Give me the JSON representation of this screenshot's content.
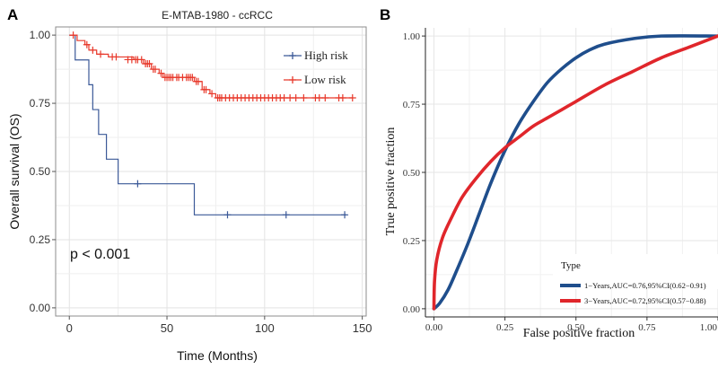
{
  "panels": {
    "a_label": "A",
    "b_label": "B"
  },
  "colors": {
    "high_risk": "#3b5998",
    "low_risk": "#e8392b",
    "roc_1yr": "#1f4e8c",
    "roc_3yr": "#e0262b",
    "grid": "#e3e3e3"
  },
  "chart_data": [
    {
      "type": "line",
      "title": "E-MTAB-1980 - ccRCC",
      "xlabel": "Time (Months)",
      "ylabel": "Overall survival (OS)",
      "xlim": [
        -7,
        152
      ],
      "ylim": [
        -0.03,
        1.03
      ],
      "x_ticks": [
        0,
        50,
        100,
        150
      ],
      "x_tick_labels": [
        "0",
        "50",
        "100",
        "150"
      ],
      "y_ticks": [
        0,
        0.25,
        0.5,
        0.75,
        1.0
      ],
      "y_tick_labels": [
        "0.00",
        "0.25",
        "0.50",
        "0.75",
        "1.00"
      ],
      "grid": true,
      "legend_position": "top-right",
      "annotation": "p < 0.001",
      "series": [
        {
          "name": "High risk",
          "color_key": "high_risk",
          "steps": [
            [
              0,
              1.0
            ],
            [
              3,
              0.909
            ],
            [
              10,
              0.818
            ],
            [
              12,
              0.727
            ],
            [
              15,
              0.636
            ],
            [
              19,
              0.545
            ],
            [
              25,
              0.455
            ],
            [
              64,
              0.341
            ],
            [
              142,
              0.341
            ]
          ],
          "censored": [
            [
              35,
              0.455
            ],
            [
              81,
              0.341
            ],
            [
              111,
              0.341
            ],
            [
              141,
              0.341
            ]
          ]
        },
        {
          "name": "Low risk",
          "color_key": "low_risk",
          "steps": [
            [
              0,
              1.0
            ],
            [
              4,
              0.98
            ],
            [
              8,
              0.965
            ],
            [
              10,
              0.945
            ],
            [
              14,
              0.93
            ],
            [
              20,
              0.92
            ],
            [
              33,
              0.91
            ],
            [
              38,
              0.895
            ],
            [
              42,
              0.875
            ],
            [
              46,
              0.86
            ],
            [
              48,
              0.845
            ],
            [
              64,
              0.83
            ],
            [
              68,
              0.8
            ],
            [
              72,
              0.785
            ],
            [
              75,
              0.77
            ],
            [
              145,
              0.77
            ]
          ],
          "censored": [
            [
              2,
              1.0
            ],
            [
              9,
              0.965
            ],
            [
              12,
              0.945
            ],
            [
              16,
              0.93
            ],
            [
              22,
              0.92
            ],
            [
              24,
              0.92
            ],
            [
              30,
              0.91
            ],
            [
              32,
              0.91
            ],
            [
              34,
              0.91
            ],
            [
              35,
              0.91
            ],
            [
              37,
              0.91
            ],
            [
              39,
              0.895
            ],
            [
              40,
              0.895
            ],
            [
              41,
              0.895
            ],
            [
              43,
              0.875
            ],
            [
              44,
              0.875
            ],
            [
              47,
              0.86
            ],
            [
              49,
              0.845
            ],
            [
              50,
              0.845
            ],
            [
              51,
              0.845
            ],
            [
              52,
              0.845
            ],
            [
              53,
              0.845
            ],
            [
              55,
              0.845
            ],
            [
              56,
              0.845
            ],
            [
              58,
              0.845
            ],
            [
              60,
              0.845
            ],
            [
              61,
              0.845
            ],
            [
              62,
              0.845
            ],
            [
              63,
              0.845
            ],
            [
              65,
              0.83
            ],
            [
              66,
              0.83
            ],
            [
              69,
              0.8
            ],
            [
              70,
              0.8
            ],
            [
              73,
              0.785
            ],
            [
              76,
              0.77
            ],
            [
              77,
              0.77
            ],
            [
              78,
              0.77
            ],
            [
              80,
              0.77
            ],
            [
              82,
              0.77
            ],
            [
              84,
              0.77
            ],
            [
              86,
              0.77
            ],
            [
              88,
              0.77
            ],
            [
              90,
              0.77
            ],
            [
              92,
              0.77
            ],
            [
              94,
              0.77
            ],
            [
              96,
              0.77
            ],
            [
              98,
              0.77
            ],
            [
              100,
              0.77
            ],
            [
              102,
              0.77
            ],
            [
              104,
              0.77
            ],
            [
              106,
              0.77
            ],
            [
              108,
              0.77
            ],
            [
              110,
              0.77
            ],
            [
              113,
              0.77
            ],
            [
              116,
              0.77
            ],
            [
              120,
              0.77
            ],
            [
              126,
              0.77
            ],
            [
              128,
              0.77
            ],
            [
              131,
              0.77
            ],
            [
              138,
              0.77
            ],
            [
              140,
              0.77
            ],
            [
              145,
              0.77
            ]
          ]
        }
      ],
      "legend_items": [
        "High risk",
        "Low risk"
      ]
    },
    {
      "type": "line",
      "title": "",
      "xlabel": "False positive fraction",
      "ylabel": "True positive fraction",
      "xlim": [
        -0.03,
        1.0
      ],
      "ylim": [
        -0.03,
        1.03
      ],
      "x_ticks": [
        0,
        0.25,
        0.5,
        0.75,
        1.0
      ],
      "x_tick_labels": [
        "0.00",
        "0.25",
        "0.50",
        "0.75",
        "1.00"
      ],
      "y_ticks": [
        0,
        0.25,
        0.5,
        0.75,
        1.0
      ],
      "y_tick_labels": [
        "0.00",
        "0.25",
        "0.50",
        "0.75",
        "1.00"
      ],
      "grid": true,
      "legend_position": "bottom-right",
      "legend_title": "Type",
      "series": [
        {
          "name": "1−Years,AUC=0.76,95%CI(0.62−0.91)",
          "color_key": "roc_1yr",
          "points": [
            [
              0,
              0
            ],
            [
              0.02,
              0.02
            ],
            [
              0.05,
              0.07
            ],
            [
              0.08,
              0.14
            ],
            [
              0.12,
              0.24
            ],
            [
              0.16,
              0.35
            ],
            [
              0.2,
              0.46
            ],
            [
              0.25,
              0.58
            ],
            [
              0.3,
              0.68
            ],
            [
              0.35,
              0.76
            ],
            [
              0.4,
              0.83
            ],
            [
              0.45,
              0.88
            ],
            [
              0.5,
              0.92
            ],
            [
              0.55,
              0.95
            ],
            [
              0.6,
              0.97
            ],
            [
              0.7,
              0.99
            ],
            [
              0.8,
              1.0
            ],
            [
              1.0,
              1.0
            ]
          ]
        },
        {
          "name": "3−Years,AUC=0.72,95%CI(0.57−0.88)",
          "color_key": "roc_3yr",
          "points": [
            [
              0,
              0
            ],
            [
              0.002,
              0.1
            ],
            [
              0.01,
              0.18
            ],
            [
              0.03,
              0.26
            ],
            [
              0.06,
              0.33
            ],
            [
              0.1,
              0.41
            ],
            [
              0.15,
              0.48
            ],
            [
              0.2,
              0.54
            ],
            [
              0.25,
              0.59
            ],
            [
              0.3,
              0.63
            ],
            [
              0.35,
              0.67
            ],
            [
              0.4,
              0.7
            ],
            [
              0.45,
              0.73
            ],
            [
              0.5,
              0.76
            ],
            [
              0.6,
              0.82
            ],
            [
              0.7,
              0.87
            ],
            [
              0.8,
              0.92
            ],
            [
              0.9,
              0.96
            ],
            [
              1.0,
              1.0
            ]
          ]
        }
      ]
    }
  ]
}
